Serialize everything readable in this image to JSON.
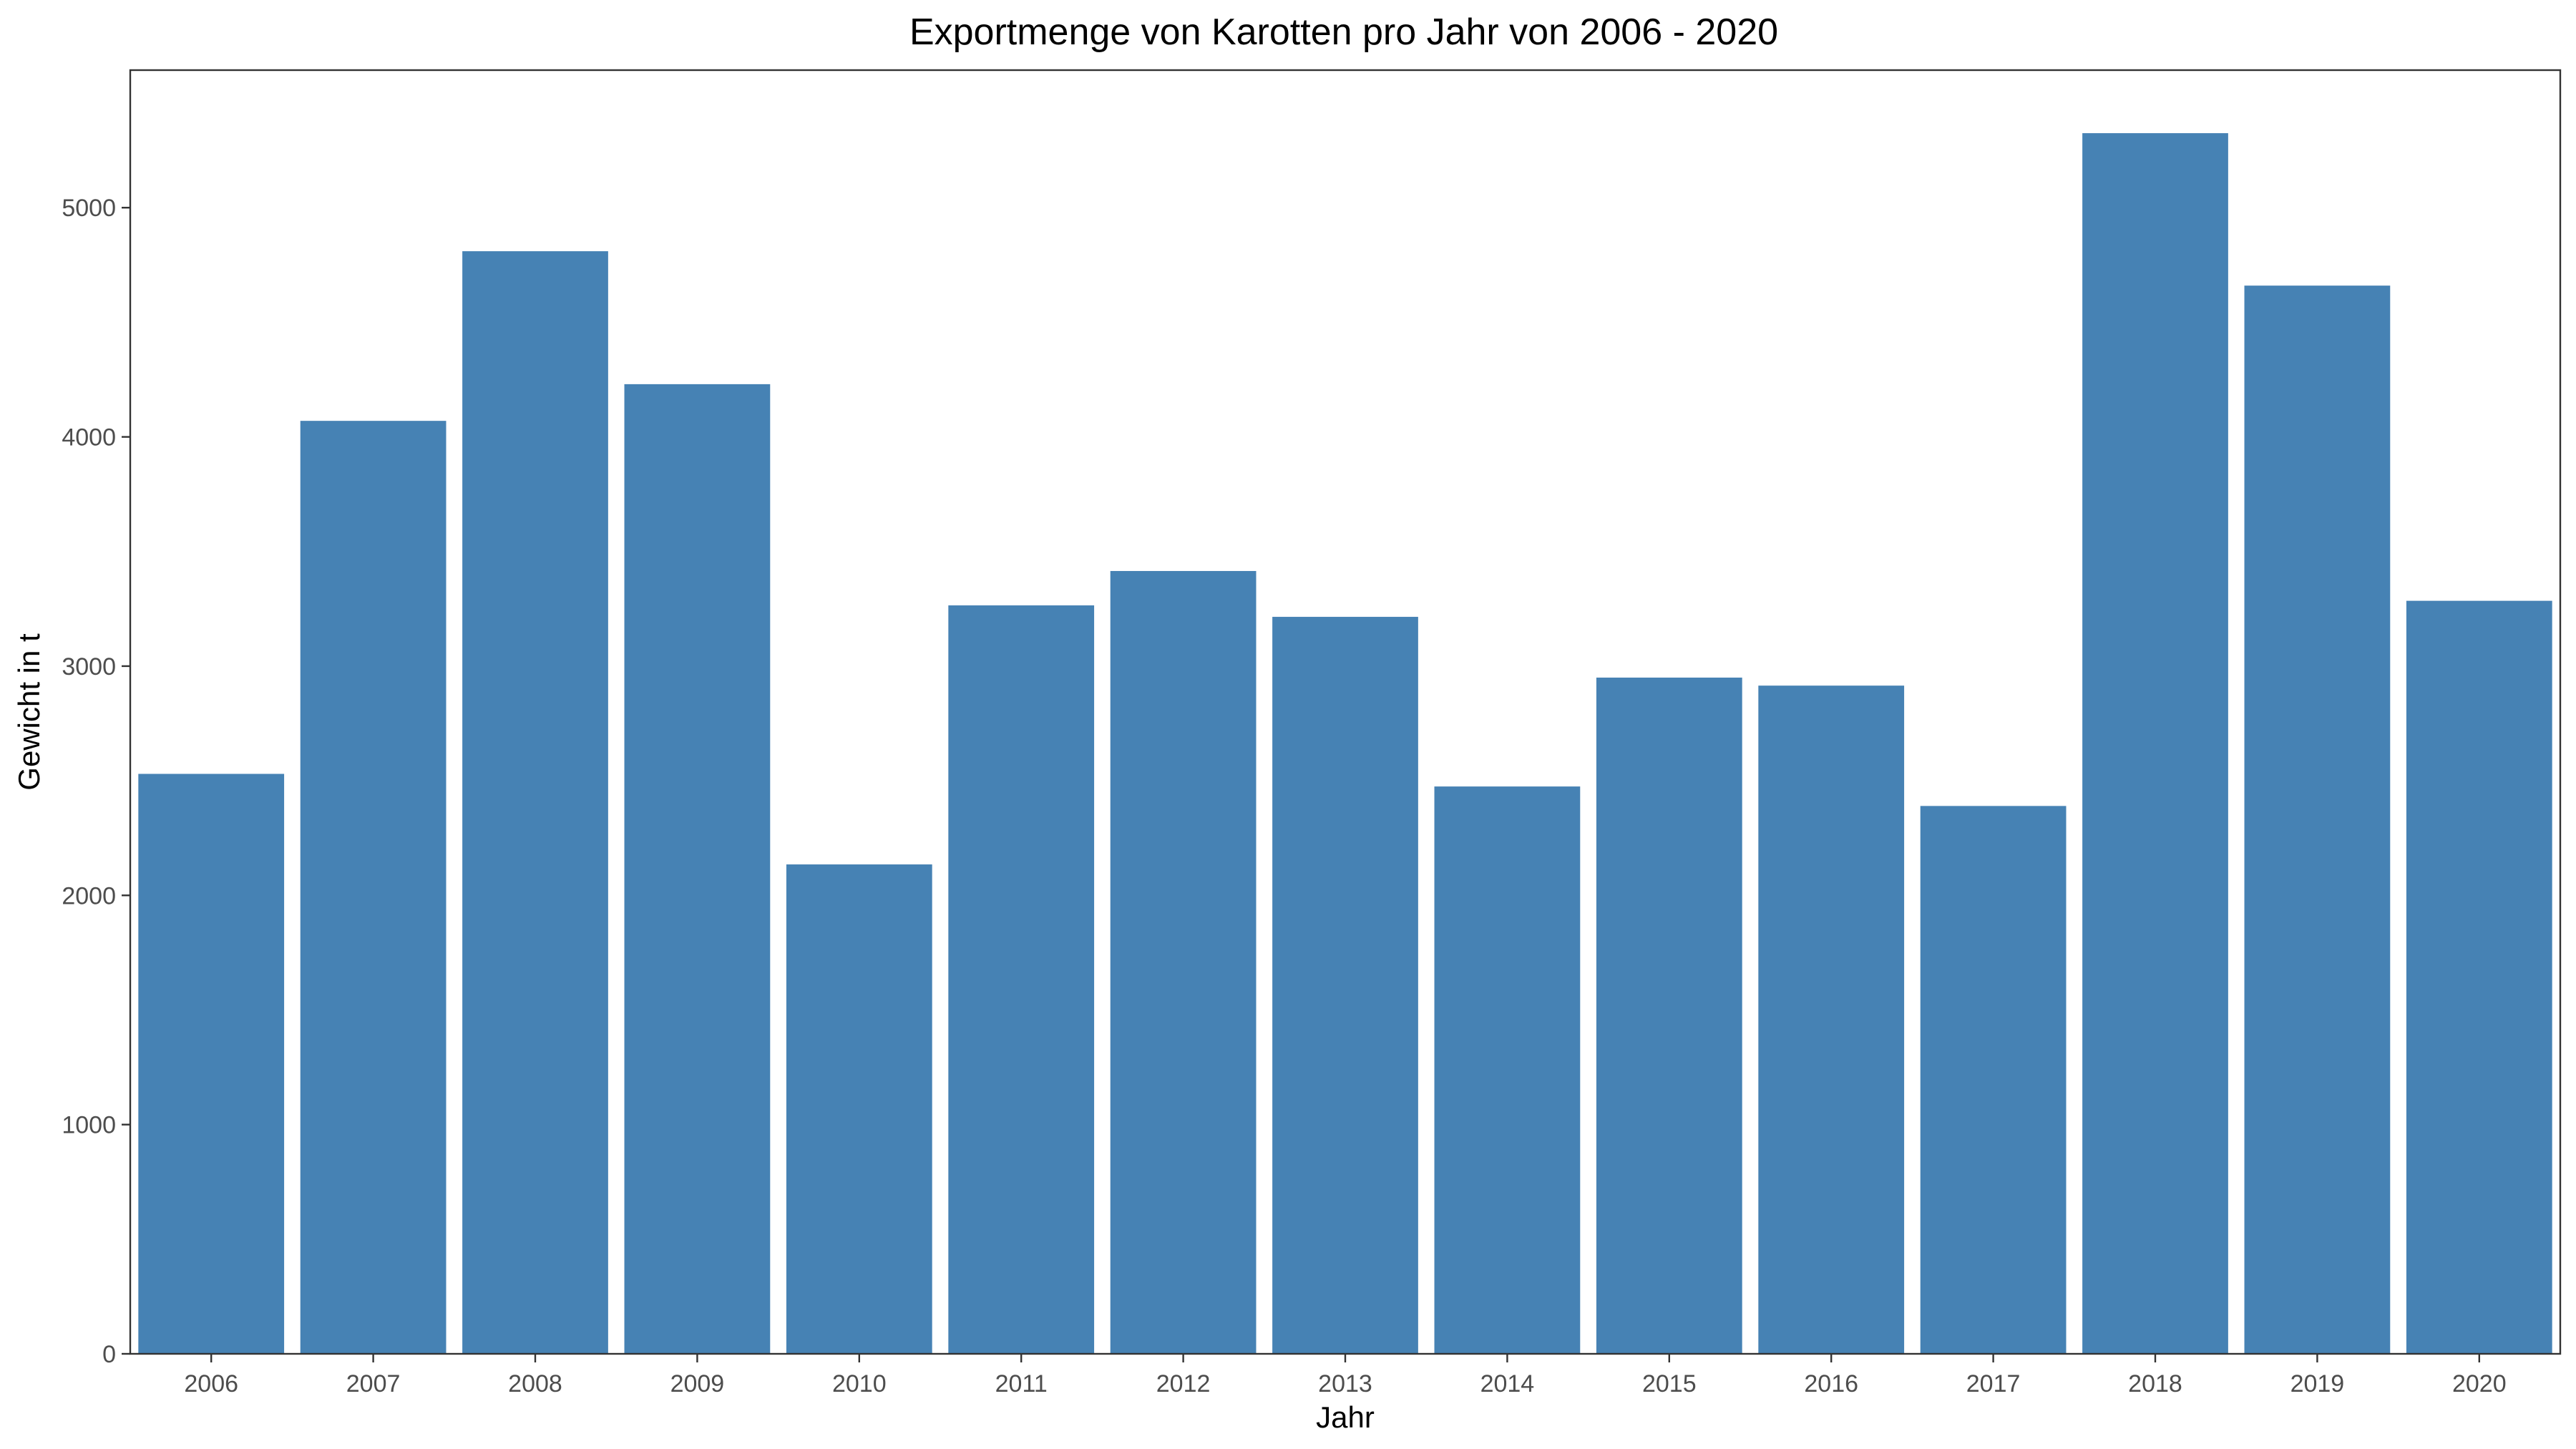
{
  "chart_data": {
    "type": "bar",
    "title": "Exportmenge von Karotten pro Jahr von 2006 - 2020",
    "xlabel": "Jahr",
    "ylabel": "Gewicht in t",
    "categories": [
      "2006",
      "2007",
      "2008",
      "2009",
      "2010",
      "2011",
      "2012",
      "2013",
      "2014",
      "2015",
      "2016",
      "2017",
      "2018",
      "2019",
      "2020"
    ],
    "values": [
      2530,
      4070,
      4810,
      4230,
      2135,
      3265,
      3415,
      3215,
      2475,
      2950,
      2915,
      2390,
      5325,
      4660,
      3285
    ],
    "ylim": [
      0,
      5600
    ],
    "yticks": [
      0,
      1000,
      2000,
      3000,
      4000,
      5000
    ],
    "bar_color": "#4682B4",
    "grid": false,
    "legend": "none"
  }
}
